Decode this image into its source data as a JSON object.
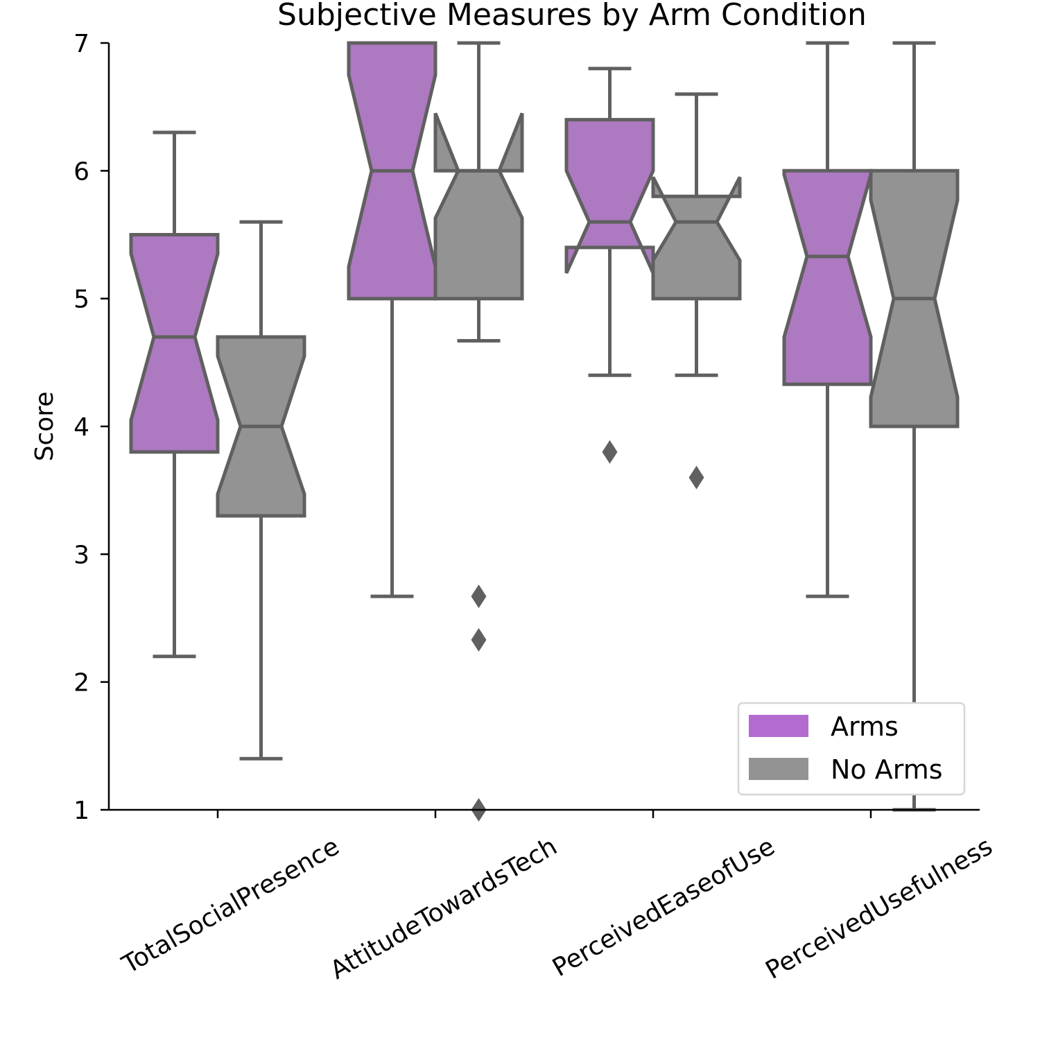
{
  "chart_data": {
    "type": "box",
    "title": "Subjective Measures by Arm Condition",
    "xlabel": "",
    "ylabel": "Score",
    "ylim": [
      1,
      7
    ],
    "yticks": [
      1,
      2,
      3,
      4,
      5,
      6,
      7
    ],
    "categories": [
      "TotalSocialPresence",
      "AttitudeTowardsTech",
      "PerceivedEaseofUse",
      "PerceivedUsefulness"
    ],
    "notched": true,
    "grid": false,
    "legend_position": "bottom-right",
    "series": [
      {
        "name": "Arms",
        "color": "#ad79c0",
        "legend_color": "#b36bcf",
        "boxes": [
          {
            "whisker_low": 2.2,
            "q1": 3.8,
            "median": 4.7,
            "q3": 5.5,
            "whisker_high": 6.3,
            "notch_low": 4.05,
            "notch_high": 5.35,
            "outliers": []
          },
          {
            "whisker_low": 2.67,
            "q1": 5.0,
            "median": 6.0,
            "q3": 7.0,
            "whisker_high": 7.0,
            "notch_low": 5.25,
            "notch_high": 6.75,
            "outliers": []
          },
          {
            "whisker_low": 4.4,
            "q1": 5.4,
            "median": 5.6,
            "q3": 6.4,
            "whisker_high": 6.8,
            "notch_low": 5.2,
            "notch_high": 6.0,
            "outliers": [
              3.8
            ]
          },
          {
            "whisker_low": 2.67,
            "q1": 4.33,
            "median": 5.33,
            "q3": 6.0,
            "whisker_high": 7.0,
            "notch_low": 4.7,
            "notch_high": 5.97,
            "outliers": []
          }
        ]
      },
      {
        "name": "No Arms",
        "color": "#939393",
        "legend_color": "#939393",
        "boxes": [
          {
            "whisker_low": 1.4,
            "q1": 3.3,
            "median": 4.0,
            "q3": 4.7,
            "whisker_high": 5.6,
            "notch_low": 3.47,
            "notch_high": 4.55,
            "outliers": []
          },
          {
            "whisker_low": 4.67,
            "q1": 5.0,
            "median": 6.0,
            "q3": 6.0,
            "whisker_high": 7.0,
            "notch_low": 5.63,
            "notch_high": 6.45,
            "outliers": [
              2.67,
              2.33,
              1.0
            ]
          },
          {
            "whisker_low": 4.4,
            "q1": 5.0,
            "median": 5.6,
            "q3": 5.8,
            "whisker_high": 6.6,
            "notch_low": 5.3,
            "notch_high": 5.95,
            "outliers": [
              3.6
            ]
          },
          {
            "whisker_low": 1.0,
            "q1": 4.0,
            "median": 5.0,
            "q3": 6.0,
            "whisker_high": 7.0,
            "notch_low": 4.23,
            "notch_high": 5.77,
            "outliers": []
          }
        ]
      }
    ]
  }
}
